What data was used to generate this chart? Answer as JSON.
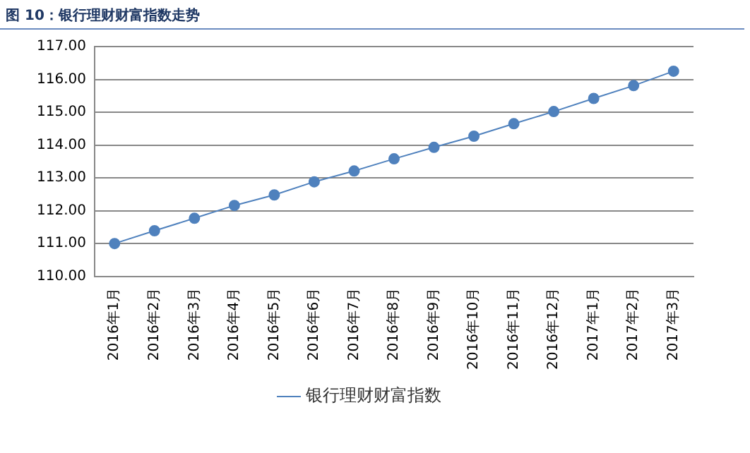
{
  "chart_data": {
    "type": "line",
    "title": "图 10：银行理财财富指数走势",
    "categories": [
      "2016年1月",
      "2016年2月",
      "2016年3月",
      "2016年4月",
      "2016年5月",
      "2016年6月",
      "2016年7月",
      "2016年8月",
      "2016年9月",
      "2016年10月",
      "2016年11月",
      "2016年12月",
      "2017年1月",
      "2017年2月",
      "2017年3月"
    ],
    "series": [
      {
        "name": "银行理财财富指数",
        "color": "#4f81bd",
        "values": [
          111.0,
          111.39,
          111.77,
          112.16,
          112.48,
          112.88,
          113.21,
          113.58,
          113.93,
          114.27,
          114.65,
          115.02,
          115.42,
          115.81,
          116.25
        ]
      }
    ],
    "ylim": [
      110,
      117
    ],
    "yticks": [
      {
        "value": 110,
        "label": "110.00"
      },
      {
        "value": 111,
        "label": "111.00"
      },
      {
        "value": 112,
        "label": "112.00"
      },
      {
        "value": 113,
        "label": "113.00"
      },
      {
        "value": 114,
        "label": "114.00"
      },
      {
        "value": 115,
        "label": "115.00"
      },
      {
        "value": 116,
        "label": "116.00"
      },
      {
        "value": 117,
        "label": "117.00"
      }
    ],
    "grid": "y",
    "legend": "bottom",
    "marker": "circle",
    "line_style": "solid"
  }
}
